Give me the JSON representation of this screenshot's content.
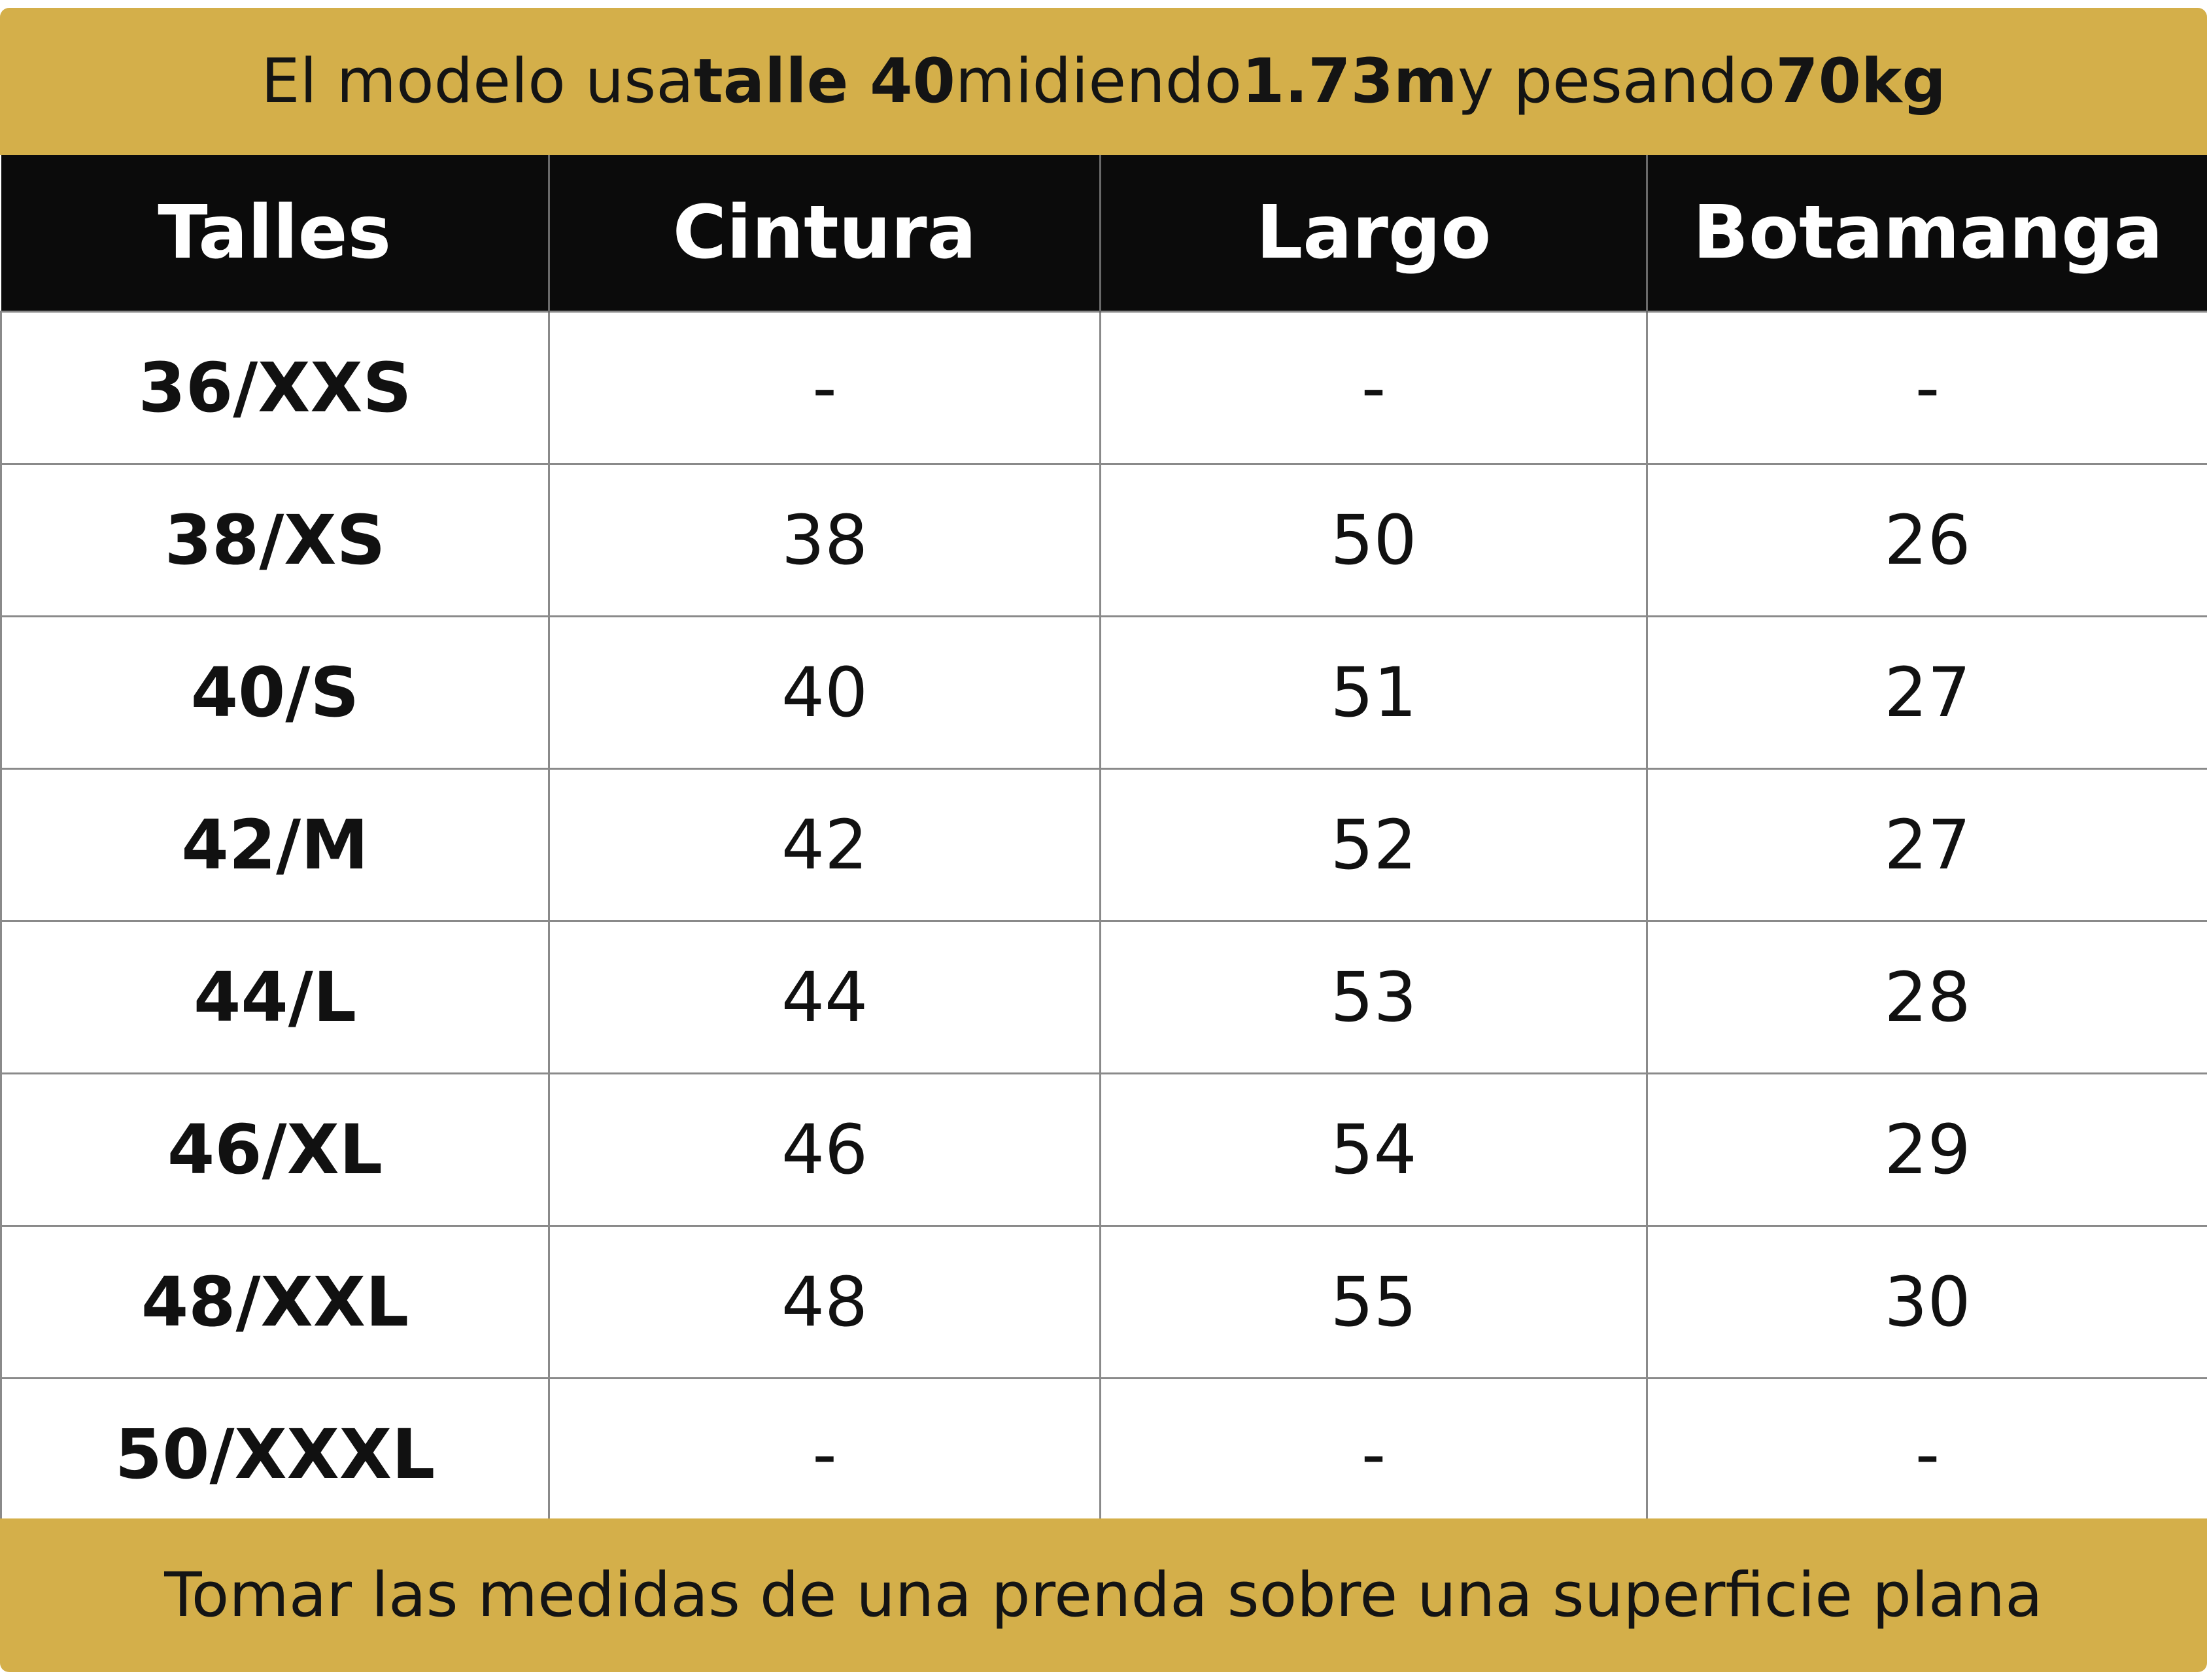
{
  "top_banner": {
    "t1": "El modelo usa ",
    "b1": "talle 40",
    "t2": " midiendo ",
    "b2": "1.73m",
    "t3": " y pesando ",
    "b3": "70kg"
  },
  "table": {
    "headers": [
      "Talles",
      "Cintura",
      "Largo",
      "Botamanga"
    ],
    "rows": [
      [
        "36/XXS",
        "-",
        "-",
        "-"
      ],
      [
        "38/XS",
        "38",
        "50",
        "26"
      ],
      [
        "40/S",
        "40",
        "51",
        "27"
      ],
      [
        "42/M",
        "42",
        "52",
        "27"
      ],
      [
        "44/L",
        "44",
        "53",
        "28"
      ],
      [
        "46/XL",
        "46",
        "54",
        "29"
      ],
      [
        "48/XXL",
        "48",
        "55",
        "30"
      ],
      [
        "50/XXXL",
        "-",
        "-",
        "-"
      ]
    ]
  },
  "bottom_banner": {
    "text": "Tomar las medidas de una prenda sobre una superficie plana"
  },
  "colors": {
    "banner": "#d4af4a",
    "header": "#0b0b0b",
    "grid": "#8a8a8a"
  }
}
